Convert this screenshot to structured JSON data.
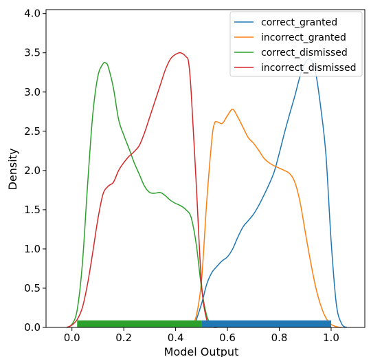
{
  "chart_data": {
    "type": "line",
    "xlabel": "Model Output",
    "ylabel": "Density",
    "xlim": [
      -0.1,
      1.13
    ],
    "ylim": [
      0.0,
      4.05
    ],
    "grid": false,
    "legend_position": "top-right",
    "x_ticks": [
      "0.0",
      "0.2",
      "0.4",
      "0.6",
      "0.8",
      "1.0"
    ],
    "x_tick_values": [
      0.0,
      0.2,
      0.4,
      0.6,
      0.8,
      1.0
    ],
    "y_ticks": [
      "0.0",
      "0.5",
      "1.0",
      "1.5",
      "2.0",
      "2.5",
      "3.0",
      "3.5",
      "4.0"
    ],
    "y_tick_values": [
      0.0,
      0.5,
      1.0,
      1.5,
      2.0,
      2.5,
      3.0,
      3.5,
      4.0
    ],
    "series": [
      {
        "name": "correct_granted",
        "color": "#1f77b4",
        "x": [
          0.47,
          0.5,
          0.52,
          0.54,
          0.56,
          0.58,
          0.6,
          0.62,
          0.64,
          0.66,
          0.68,
          0.7,
          0.72,
          0.74,
          0.76,
          0.78,
          0.8,
          0.82,
          0.84,
          0.86,
          0.88,
          0.9,
          0.92,
          0.94,
          0.96,
          0.98,
          1.0,
          1.02,
          1.04,
          1.06
        ],
        "y": [
          0.0,
          0.3,
          0.55,
          0.7,
          0.78,
          0.85,
          0.9,
          1.0,
          1.15,
          1.28,
          1.36,
          1.44,
          1.55,
          1.68,
          1.82,
          1.98,
          2.22,
          2.48,
          2.72,
          2.95,
          3.2,
          3.37,
          3.42,
          3.25,
          2.8,
          2.2,
          1.1,
          0.3,
          0.05,
          0.0
        ]
      },
      {
        "name": "incorrect_granted",
        "color": "#ff7f0e",
        "x": [
          0.46,
          0.48,
          0.5,
          0.52,
          0.54,
          0.55,
          0.56,
          0.58,
          0.6,
          0.62,
          0.64,
          0.66,
          0.68,
          0.7,
          0.72,
          0.74,
          0.76,
          0.78,
          0.8,
          0.82,
          0.84,
          0.86,
          0.88,
          0.9,
          0.92,
          0.94,
          0.96,
          0.98,
          1.0,
          1.02,
          1.04
        ],
        "y": [
          0.0,
          0.15,
          0.6,
          1.6,
          2.4,
          2.6,
          2.62,
          2.6,
          2.7,
          2.78,
          2.68,
          2.55,
          2.42,
          2.35,
          2.26,
          2.16,
          2.1,
          2.06,
          2.03,
          2.0,
          1.96,
          1.85,
          1.6,
          1.22,
          0.85,
          0.52,
          0.28,
          0.12,
          0.04,
          0.01,
          0.0
        ]
      },
      {
        "name": "correct_dismissed",
        "color": "#2ca02c",
        "x": [
          -0.02,
          0.0,
          0.02,
          0.04,
          0.06,
          0.08,
          0.1,
          0.12,
          0.13,
          0.14,
          0.16,
          0.18,
          0.2,
          0.22,
          0.24,
          0.26,
          0.28,
          0.3,
          0.32,
          0.34,
          0.36,
          0.38,
          0.4,
          0.42,
          0.44,
          0.46,
          0.48,
          0.5,
          0.52,
          0.54,
          0.56
        ],
        "y": [
          0.0,
          0.04,
          0.22,
          0.8,
          1.8,
          2.7,
          3.2,
          3.36,
          3.37,
          3.32,
          3.05,
          2.65,
          2.45,
          2.28,
          2.1,
          1.95,
          1.8,
          1.72,
          1.71,
          1.72,
          1.68,
          1.62,
          1.58,
          1.55,
          1.5,
          1.4,
          1.05,
          0.5,
          0.15,
          0.03,
          0.0
        ]
      },
      {
        "name": "incorrect_dismissed",
        "color": "#d62728",
        "x": [
          -0.02,
          0.0,
          0.02,
          0.04,
          0.06,
          0.08,
          0.1,
          0.12,
          0.14,
          0.16,
          0.18,
          0.2,
          0.22,
          0.24,
          0.26,
          0.28,
          0.3,
          0.32,
          0.34,
          0.36,
          0.38,
          0.4,
          0.42,
          0.44,
          0.45,
          0.46,
          0.48,
          0.5,
          0.52,
          0.54,
          0.56
        ],
        "y": [
          0.0,
          0.03,
          0.1,
          0.25,
          0.55,
          0.95,
          1.38,
          1.7,
          1.8,
          1.85,
          2.0,
          2.1,
          2.18,
          2.24,
          2.32,
          2.48,
          2.68,
          2.88,
          3.08,
          3.28,
          3.42,
          3.48,
          3.5,
          3.45,
          3.38,
          3.0,
          1.8,
          0.55,
          0.1,
          0.01,
          0.0
        ]
      }
    ],
    "rug": [
      {
        "name": "correct_dismissed",
        "color": "#2ca02c",
        "x_start": 0.02,
        "x_end": 0.5
      },
      {
        "name": "correct_granted",
        "color": "#1f77b4",
        "x_start": 0.5,
        "x_end": 1.0
      }
    ]
  }
}
